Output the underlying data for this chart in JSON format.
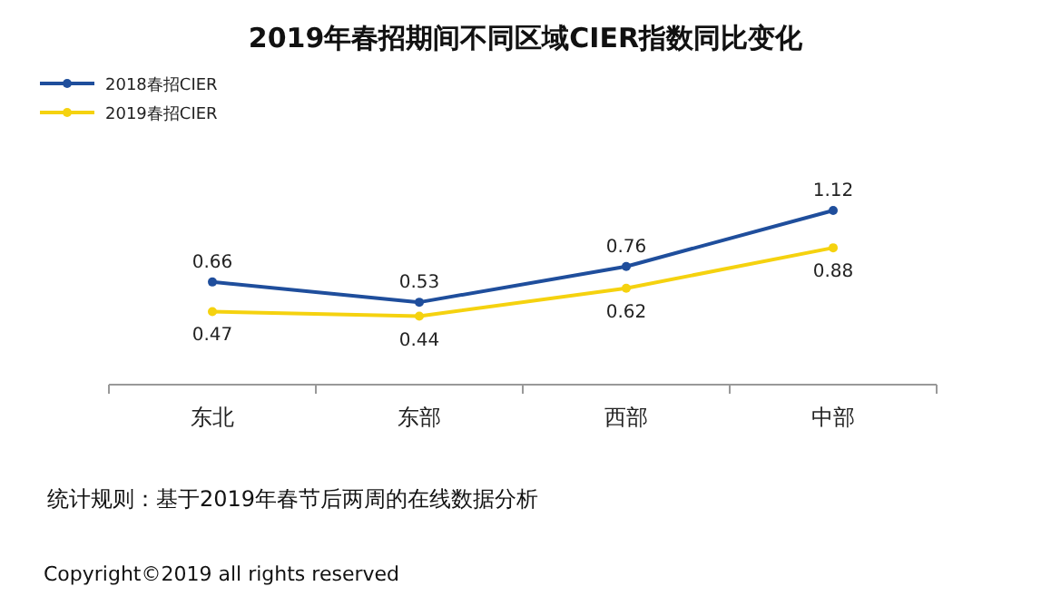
{
  "chart_data": {
    "type": "line",
    "title": "2019年春招期间不同区域CIER指数同比变化",
    "categories": [
      "东北",
      "东部",
      "西部",
      "中部"
    ],
    "series": [
      {
        "name": "2018春招CIER",
        "color": "#1f4e9c",
        "values": [
          0.66,
          0.53,
          0.76,
          1.12
        ]
      },
      {
        "name": "2019春招CIER",
        "color": "#f5d20f",
        "values": [
          0.47,
          0.44,
          0.62,
          0.88
        ]
      }
    ],
    "data_labels": true,
    "marker": "circle",
    "legend": "top left",
    "grid": false,
    "annotations": [
      "统计规则：基于2019年春节后两周的在线数据分析",
      "Copyright©2019 all rights reserved"
    ]
  }
}
